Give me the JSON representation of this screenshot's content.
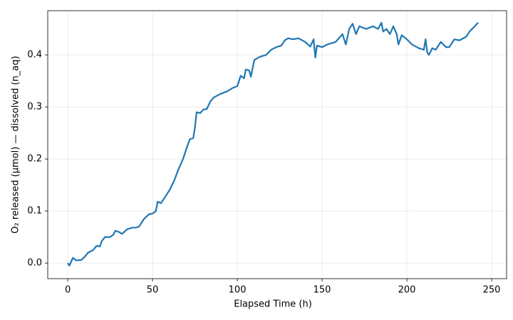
{
  "chart_data": {
    "type": "line",
    "x_label": "Elapsed Time (h)",
    "y_label": "O₂ released (μmol)  — dissolved (n_aq)",
    "x": [
      0,
      1,
      3,
      5,
      8,
      10,
      12,
      15,
      17,
      19,
      20,
      22,
      25,
      27,
      28,
      30,
      32,
      35,
      38,
      40,
      42,
      45,
      48,
      50,
      52,
      53,
      55,
      58,
      60,
      63,
      65,
      68,
      70,
      72,
      74,
      75,
      76,
      78,
      80,
      82,
      84,
      86,
      90,
      94,
      97,
      100,
      102,
      104,
      105,
      107,
      108,
      110,
      113,
      117,
      120,
      123,
      126,
      128,
      130,
      133,
      136,
      140,
      143,
      145,
      146,
      147,
      150,
      153,
      158,
      162,
      164,
      166,
      168,
      170,
      172,
      176,
      180,
      183,
      185,
      186,
      188,
      190,
      192,
      194,
      195,
      197,
      200,
      203,
      207,
      210,
      211,
      212,
      213,
      215,
      217,
      220,
      223,
      225,
      228,
      231,
      235,
      237,
      240,
      242
    ],
    "series": [
      {
        "color": "#1f77b4",
        "values": [
          0.0,
          -0.005,
          0.01,
          0.005,
          0.006,
          0.012,
          0.02,
          0.025,
          0.033,
          0.032,
          0.042,
          0.05,
          0.05,
          0.055,
          0.062,
          0.06,
          0.056,
          0.065,
          0.068,
          0.068,
          0.07,
          0.085,
          0.094,
          0.095,
          0.1,
          0.118,
          0.115,
          0.13,
          0.14,
          0.16,
          0.178,
          0.2,
          0.22,
          0.238,
          0.24,
          0.26,
          0.29,
          0.288,
          0.295,
          0.296,
          0.31,
          0.318,
          0.325,
          0.33,
          0.336,
          0.34,
          0.36,
          0.355,
          0.372,
          0.37,
          0.358,
          0.39,
          0.396,
          0.4,
          0.41,
          0.415,
          0.418,
          0.428,
          0.432,
          0.43,
          0.432,
          0.425,
          0.416,
          0.43,
          0.395,
          0.418,
          0.415,
          0.42,
          0.425,
          0.44,
          0.42,
          0.45,
          0.46,
          0.44,
          0.455,
          0.45,
          0.455,
          0.45,
          0.462,
          0.445,
          0.45,
          0.44,
          0.455,
          0.44,
          0.42,
          0.438,
          0.43,
          0.42,
          0.413,
          0.41,
          0.43,
          0.405,
          0.4,
          0.413,
          0.41,
          0.425,
          0.415,
          0.415,
          0.43,
          0.428,
          0.435,
          0.445,
          0.455,
          0.462
        ]
      }
    ],
    "xlim": [
      -11.8,
      258.8
    ],
    "ylim": [
      -0.03,
      0.485
    ],
    "xticks": [
      0,
      50,
      100,
      150,
      200,
      250
    ],
    "yticks": [
      {
        "value": 0,
        "label": "0.0"
      },
      0.1,
      0.2,
      0.3,
      0.4
    ],
    "grid": true
  }
}
